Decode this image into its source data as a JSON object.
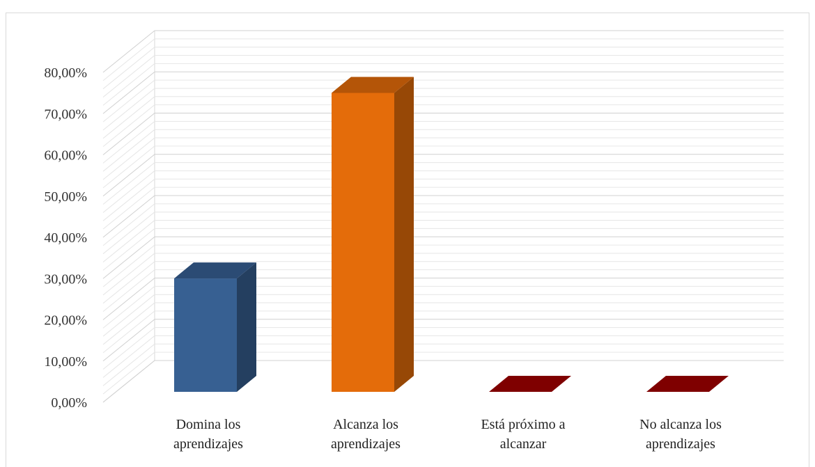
{
  "chart_data": {
    "type": "bar",
    "title": "",
    "xlabel": "",
    "ylabel": "",
    "categories": [
      [
        "Domina los",
        "aprendizajes"
      ],
      [
        "Alcanza los",
        "aprendizajes"
      ],
      [
        "Está próximo a",
        "alcanzar"
      ],
      [
        "No alcanza los",
        "aprendizajes"
      ]
    ],
    "values": [
      27.5,
      72.5,
      0,
      0
    ],
    "ylim": [
      0,
      80
    ],
    "yticks": [
      "0,00%",
      "10,00%",
      "20,00%",
      "30,00%",
      "40,00%",
      "50,00%",
      "60,00%",
      "70,00%",
      "80,00%"
    ],
    "colors": [
      "#376092",
      "#e46c0a",
      "#990000",
      "#990000"
    ],
    "side_colors": [
      "#243f60",
      "#974806",
      "#6b0000",
      "#6b0000"
    ],
    "top_colors": [
      "#2b4b74",
      "#b45508",
      "#7f0000",
      "#7f0000"
    ],
    "grid": true,
    "legend": "none",
    "style": "3d-column"
  }
}
